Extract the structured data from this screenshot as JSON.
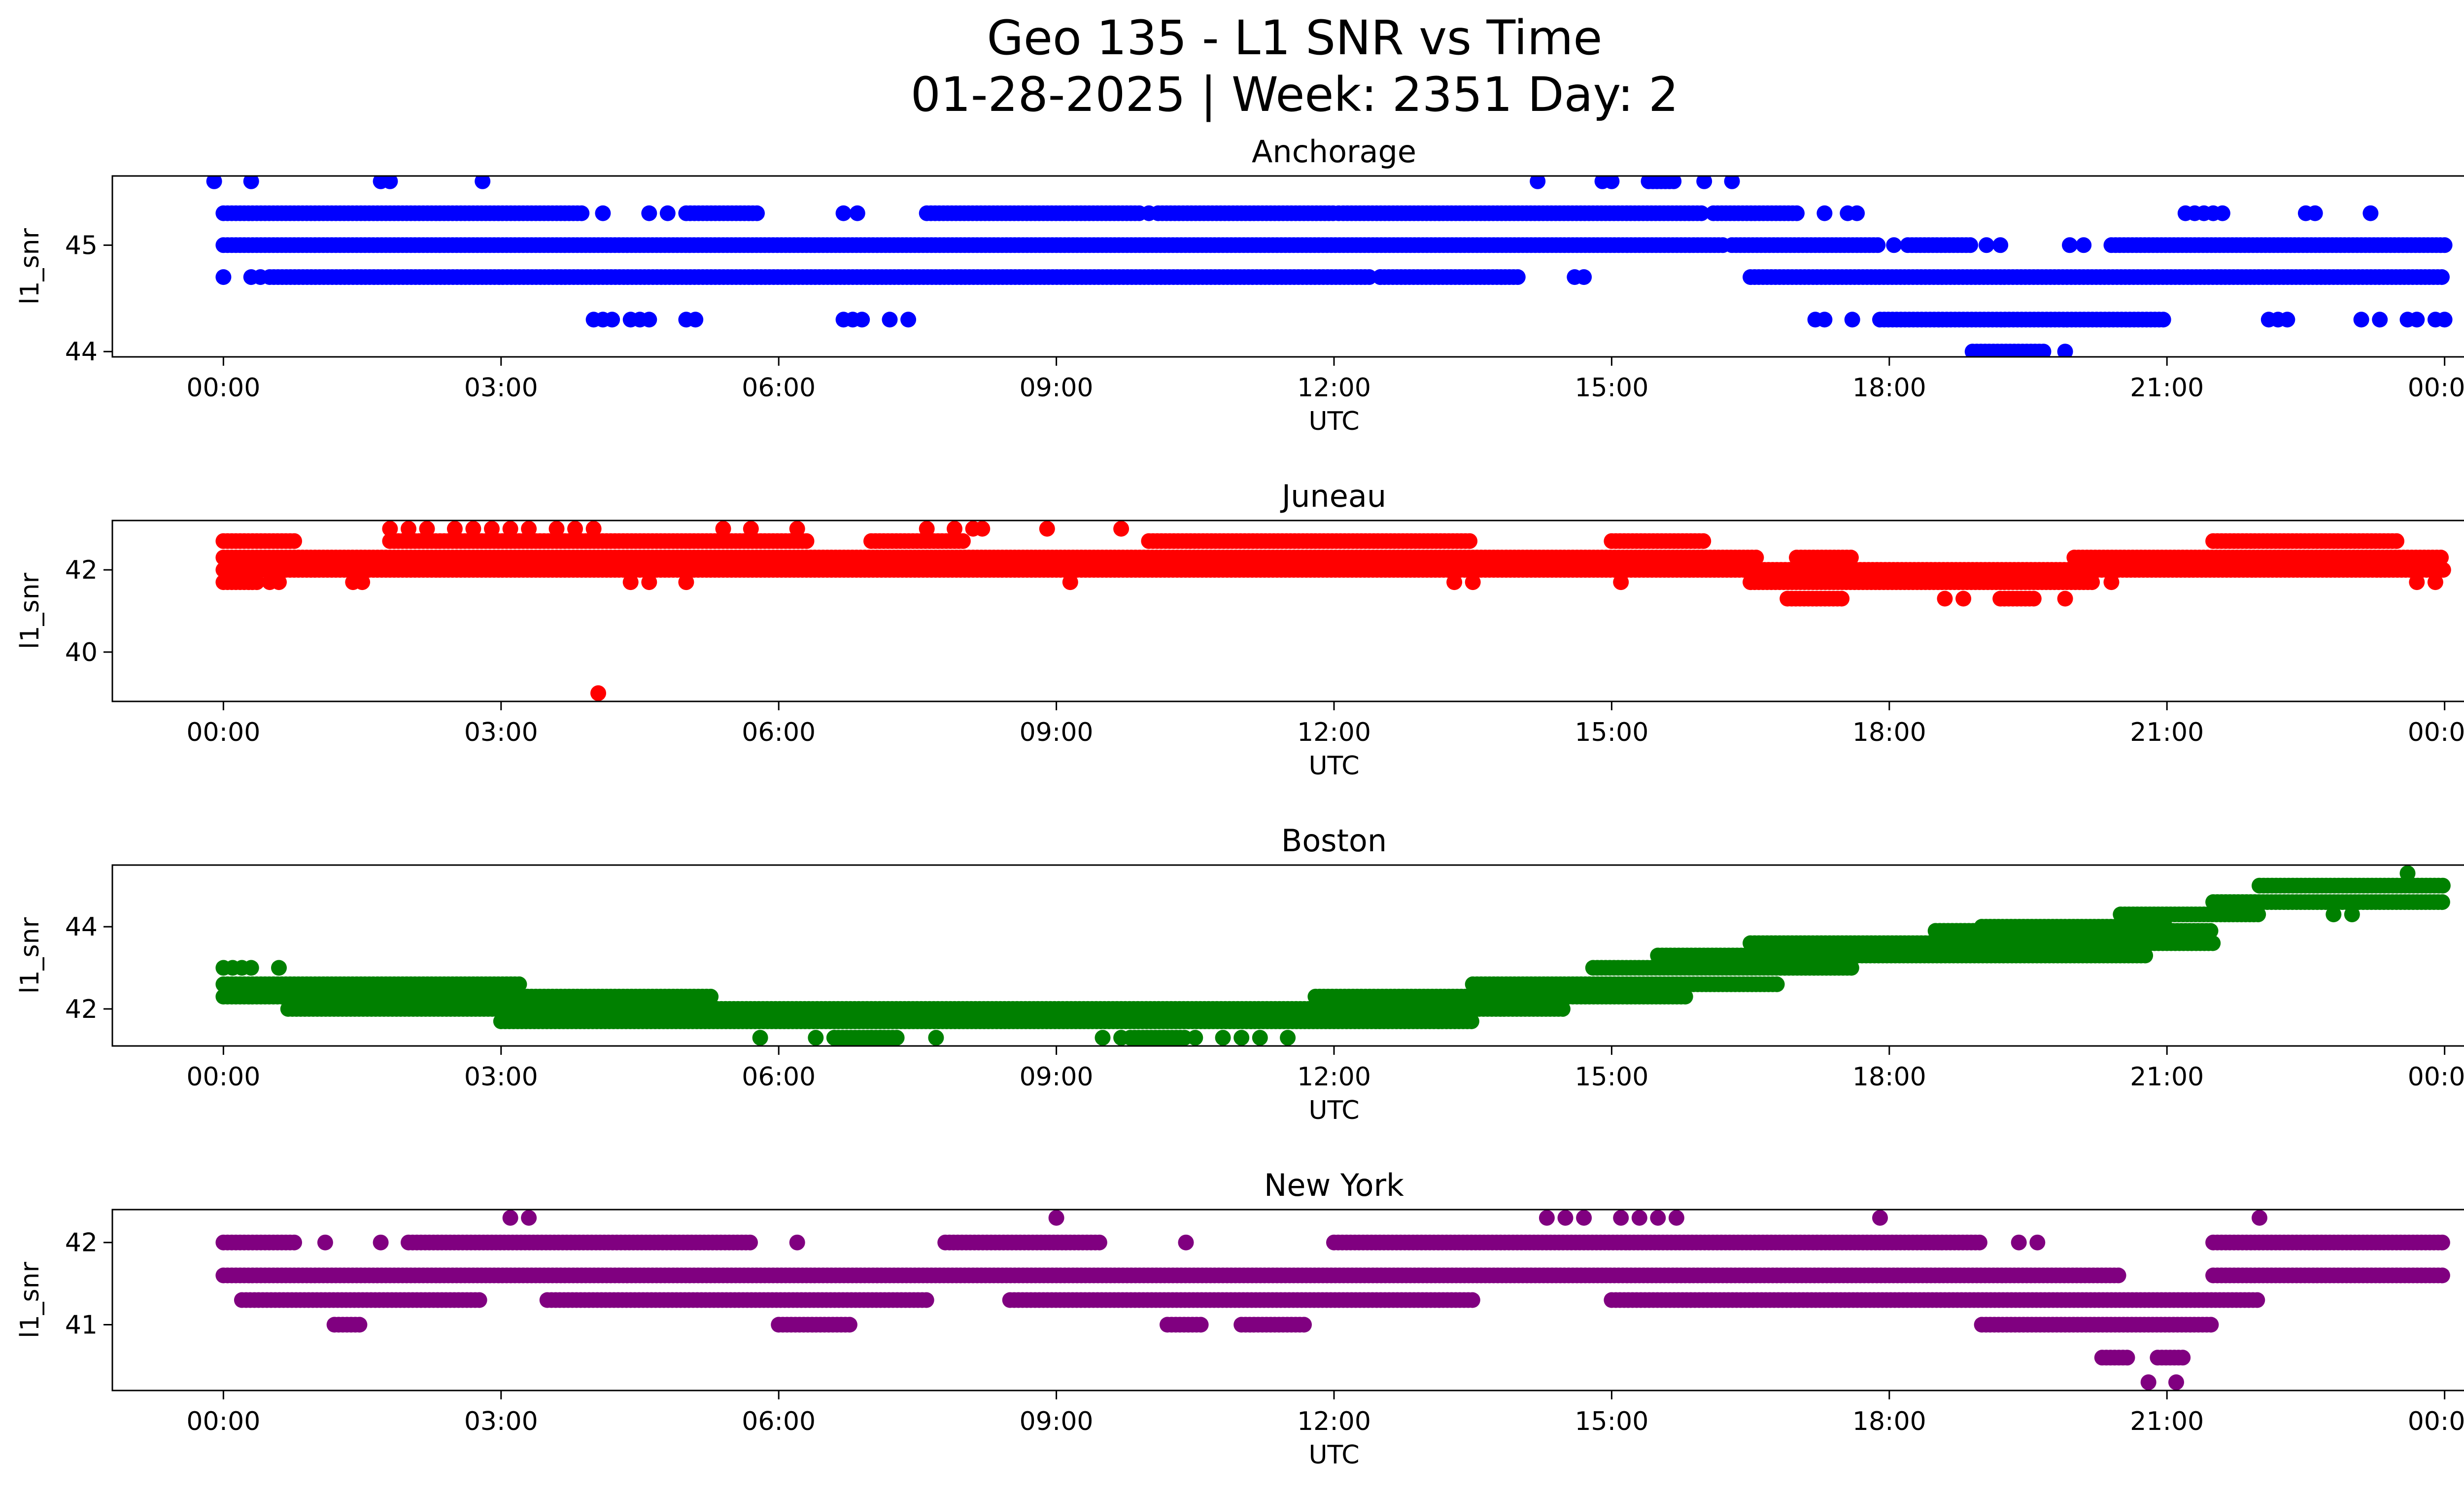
{
  "figure": {
    "title_line1": "Geo 135 - L1 SNR vs Time",
    "title_line2": "01-28-2025 | Week: 2351 Day: 2"
  },
  "chart_data": [
    {
      "type": "scatter",
      "title": "Anchorage",
      "xlabel": "UTC",
      "ylabel": "l1_snr",
      "color": "#0000ff",
      "xlim": [
        -1.2,
        25.2
      ],
      "ylim": [
        43.95,
        45.65
      ],
      "xticks": [
        "00:00",
        "03:00",
        "06:00",
        "09:00",
        "12:00",
        "15:00",
        "18:00",
        "21:00",
        "00:00"
      ],
      "yticks": [
        44,
        45
      ],
      "x_unit": "hours UTC",
      "bands": [
        {
          "y": 45.0,
          "segments": [
            [
              0.0,
              16.2
            ],
            [
              16.3,
              17.9
            ],
            [
              18.2,
              18.9
            ],
            [
              20.4,
              24.0
            ]
          ]
        },
        {
          "y": 45.0,
          "points": [
            18.05,
            19.05,
            19.2,
            19.95,
            20.1
          ]
        },
        {
          "y": 45.3,
          "segments": [
            [
              0.0,
              3.9
            ],
            [
              5.0,
              5.8
            ],
            [
              7.6,
              9.9
            ],
            [
              10.1,
              12.0
            ],
            [
              12.1,
              16.0
            ],
            [
              16.1,
              17.0
            ]
          ]
        },
        {
          "y": 45.3,
          "points": [
            4.1,
            4.6,
            4.8,
            6.7,
            6.85,
            10.0,
            12.05,
            17.3,
            17.55,
            17.65,
            21.2,
            21.3,
            21.4,
            21.5,
            21.6,
            22.5,
            22.6,
            23.2
          ]
        },
        {
          "y": 44.7,
          "points": [
            0.0,
            0.3,
            0.4,
            12.5,
            14.6,
            14.7
          ]
        },
        {
          "y": 44.7,
          "segments": [
            [
              0.5,
              12.4
            ],
            [
              12.5,
              14.0
            ],
            [
              16.5,
              24.0
            ]
          ]
        },
        {
          "y": 44.3,
          "points": [
            4.0,
            4.1,
            4.2,
            4.4,
            4.5,
            4.6,
            5.0,
            5.1,
            6.7,
            6.8,
            6.9,
            7.2,
            7.4,
            17.2,
            17.3,
            17.6,
            22.1,
            22.2,
            22.3,
            23.1,
            23.3,
            23.6,
            23.7,
            23.9,
            24.0
          ]
        },
        {
          "y": 44.3,
          "segments": [
            [
              17.9,
              21.0
            ]
          ]
        },
        {
          "y": 44.0,
          "segments": [
            [
              18.9,
              19.7
            ]
          ]
        },
        {
          "y": 44.0,
          "points": [
            19.9
          ]
        },
        {
          "y": 45.6,
          "points": [
            -0.1,
            0.3,
            1.7,
            1.8,
            2.8,
            14.2,
            14.9,
            15.0,
            16.0,
            16.3
          ]
        },
        {
          "y": 45.6,
          "segments": [
            [
              15.4,
              15.7
            ]
          ]
        }
      ]
    },
    {
      "type": "scatter",
      "title": "Juneau",
      "xlabel": "UTC",
      "ylabel": "l1_snr",
      "color": "#ff0000",
      "xlim": [
        -1.2,
        25.2
      ],
      "ylim": [
        38.8,
        43.2
      ],
      "xticks": [
        "00:00",
        "03:00",
        "06:00",
        "09:00",
        "12:00",
        "15:00",
        "18:00",
        "21:00",
        "00:00"
      ],
      "yticks": [
        40,
        42
      ],
      "x_unit": "hours UTC",
      "bands": [
        {
          "y": 42.0,
          "segments": [
            [
              0.0,
              24.0
            ]
          ]
        },
        {
          "y": 42.3,
          "segments": [
            [
              0.0,
              16.6
            ],
            [
              17.0,
              17.6
            ],
            [
              20.0,
              24.0
            ]
          ]
        },
        {
          "y": 41.7,
          "segments": [
            [
              0.0,
              0.4
            ],
            [
              16.5,
              20.2
            ]
          ]
        },
        {
          "y": 41.7,
          "points": [
            0.5,
            0.6,
            1.4,
            1.5,
            4.4,
            4.6,
            5.0,
            9.15,
            13.3,
            13.5,
            15.1,
            20.4,
            23.7,
            23.9
          ]
        },
        {
          "y": 42.7,
          "segments": [
            [
              0.0,
              0.8
            ],
            [
              1.8,
              6.3
            ],
            [
              7.0,
              8.0
            ],
            [
              10.0,
              13.5
            ],
            [
              15.0,
              16.0
            ],
            [
              21.5,
              23.5
            ]
          ]
        },
        {
          "y": 41.3,
          "segments": [
            [
              16.9,
              17.5
            ],
            [
              19.2,
              19.6
            ]
          ]
        },
        {
          "y": 41.3,
          "points": [
            18.6,
            18.8,
            19.9
          ]
        },
        {
          "y": 43.0,
          "points": [
            1.8,
            2.0,
            2.2,
            2.5,
            2.7,
            2.9,
            3.1,
            3.3,
            3.6,
            3.8,
            4.0,
            5.4,
            5.7,
            6.2,
            7.6,
            7.9,
            8.1,
            8.2,
            8.9,
            9.7
          ]
        },
        {
          "y": 39.0,
          "points": [
            4.05
          ]
        }
      ]
    },
    {
      "type": "scatter",
      "title": "Boston",
      "xlabel": "UTC",
      "ylabel": "l1_snr",
      "color": "#008000",
      "xlim": [
        -1.2,
        25.2
      ],
      "ylim": [
        41.1,
        45.5
      ],
      "xticks": [
        "00:00",
        "03:00",
        "06:00",
        "09:00",
        "12:00",
        "15:00",
        "18:00",
        "21:00",
        "00:00"
      ],
      "yticks": [
        42,
        44
      ],
      "x_unit": "hours UTC",
      "bands": [
        {
          "y": 43.0,
          "points": [
            0.0,
            0.1,
            0.2,
            0.3,
            0.6
          ]
        },
        {
          "y": 42.6,
          "segments": [
            [
              0.0,
              3.2
            ]
          ]
        },
        {
          "y": 42.3,
          "segments": [
            [
              0.0,
              5.3
            ],
            [
              11.8,
              13.5
            ]
          ]
        },
        {
          "y": 42.0,
          "segments": [
            [
              0.7,
              14.5
            ]
          ]
        },
        {
          "y": 41.7,
          "segments": [
            [
              3.0,
              13.5
            ]
          ]
        },
        {
          "y": 41.3,
          "points": [
            5.8,
            6.4,
            6.6,
            7.0,
            7.1,
            7.7,
            9.5,
            9.7,
            10.5,
            10.8,
            11.0,
            11.2,
            11.5
          ]
        },
        {
          "y": 41.3,
          "segments": [
            [
              6.6,
              7.3
            ],
            [
              9.8,
              10.4
            ]
          ]
        },
        {
          "y": 42.6,
          "segments": [
            [
              13.5,
              16.8
            ]
          ]
        },
        {
          "y": 42.3,
          "segments": [
            [
              13.5,
              15.8
            ]
          ]
        },
        {
          "y": 43.0,
          "segments": [
            [
              14.8,
              17.6
            ]
          ]
        },
        {
          "y": 43.3,
          "segments": [
            [
              15.5,
              20.8
            ]
          ]
        },
        {
          "y": 43.6,
          "segments": [
            [
              16.5,
              21.5
            ]
          ]
        },
        {
          "y": 43.9,
          "segments": [
            [
              18.5,
              21.5
            ]
          ]
        },
        {
          "y": 44.0,
          "segments": [
            [
              19.0,
              21.0
            ]
          ]
        },
        {
          "y": 44.3,
          "segments": [
            [
              20.5,
              22.0
            ]
          ]
        },
        {
          "y": 44.6,
          "segments": [
            [
              21.5,
              24.0
            ]
          ]
        },
        {
          "y": 45.0,
          "segments": [
            [
              22.0,
              24.0
            ]
          ]
        },
        {
          "y": 45.3,
          "points": [
            23.6
          ]
        },
        {
          "y": 44.3,
          "points": [
            22.8,
            23.0
          ]
        }
      ]
    },
    {
      "type": "scatter",
      "title": "New York",
      "xlabel": "UTC",
      "ylabel": "l1_snr",
      "color": "#800080",
      "xlim": [
        -1.2,
        25.2
      ],
      "ylim": [
        40.2,
        42.4
      ],
      "xticks": [
        "00:00",
        "03:00",
        "06:00",
        "09:00",
        "12:00",
        "15:00",
        "18:00",
        "21:00",
        "00:00"
      ],
      "yticks": [
        41,
        42
      ],
      "x_unit": "hours UTC",
      "bands": [
        {
          "y": 41.6,
          "segments": [
            [
              0.0,
              20.5
            ],
            [
              21.5,
              24.0
            ]
          ]
        },
        {
          "y": 42.0,
          "segments": [
            [
              0.0,
              0.8
            ],
            [
              2.0,
              5.7
            ],
            [
              7.8,
              9.5
            ],
            [
              12.0,
              19.0
            ],
            [
              21.5,
              24.0
            ]
          ]
        },
        {
          "y": 42.0,
          "points": [
            1.1,
            1.7,
            6.2,
            10.4,
            19.4,
            19.6
          ]
        },
        {
          "y": 41.3,
          "segments": [
            [
              0.2,
              2.8
            ],
            [
              3.5,
              7.6
            ],
            [
              8.5,
              13.5
            ],
            [
              15.0,
              22.0
            ]
          ]
        },
        {
          "y": 41.0,
          "segments": [
            [
              1.2,
              1.5
            ],
            [
              6.0,
              6.8
            ],
            [
              10.2,
              10.6
            ],
            [
              11.0,
              11.7
            ],
            [
              19.0,
              21.5
            ]
          ]
        },
        {
          "y": 40.6,
          "segments": [
            [
              20.3,
              20.6
            ],
            [
              20.9,
              21.2
            ]
          ]
        },
        {
          "y": 40.3,
          "points": [
            20.8,
            21.1
          ]
        },
        {
          "y": 42.3,
          "points": [
            3.1,
            3.3,
            9.0,
            14.3,
            14.5,
            14.7,
            15.1,
            15.3,
            15.5,
            15.7,
            17.9,
            22.0
          ]
        }
      ]
    }
  ]
}
